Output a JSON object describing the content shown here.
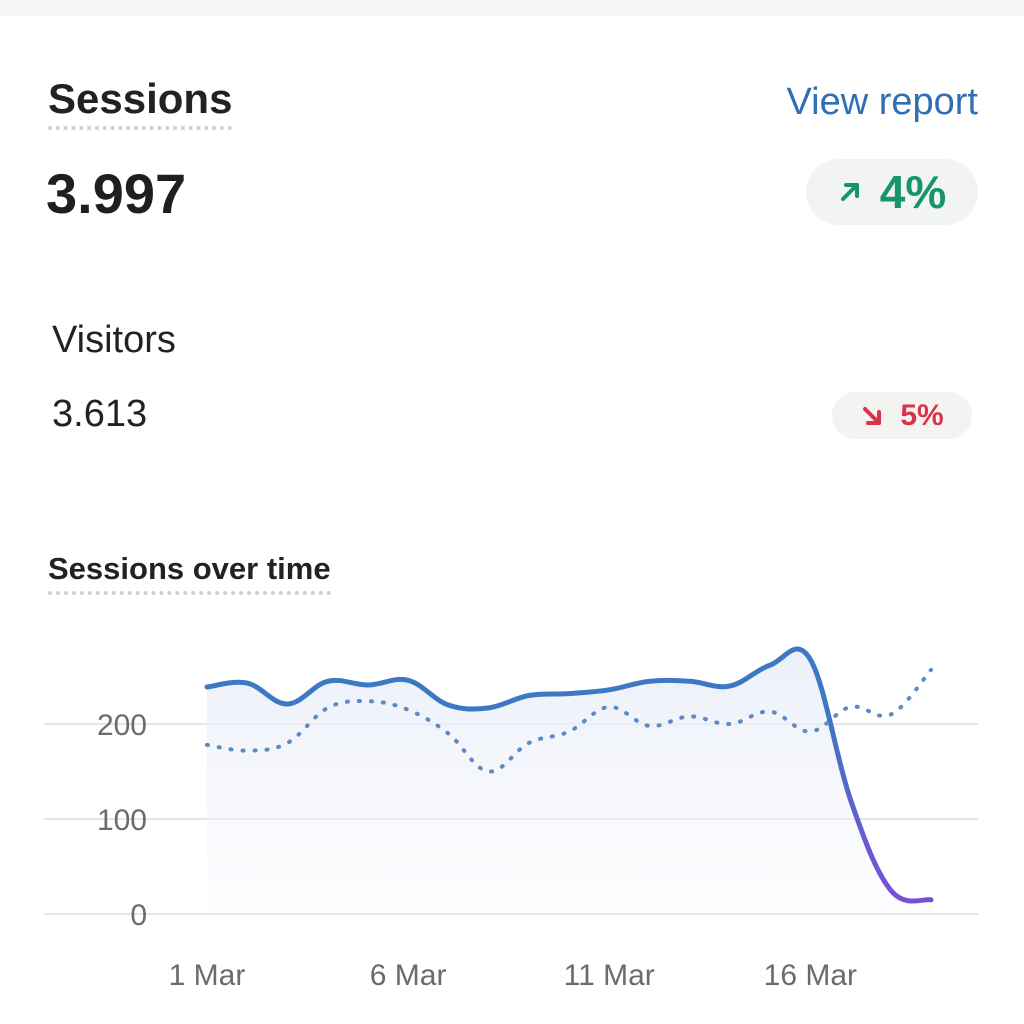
{
  "card": {
    "title": "Sessions",
    "view_report": "View report",
    "value": "3.997",
    "change": "4%",
    "change_direction": "up",
    "up_color": "#14956d",
    "down_color": "#d6344b",
    "accent": "#2f6fb2"
  },
  "secondary": {
    "label": "Visitors",
    "value": "3.613",
    "change": "5%",
    "change_direction": "down"
  },
  "chart_data": {
    "type": "line",
    "title": "Sessions over time",
    "x": [
      "1 Mar",
      "2 Mar",
      "3 Mar",
      "4 Mar",
      "5 Mar",
      "6 Mar",
      "7 Mar",
      "8 Mar",
      "9 Mar",
      "10 Mar",
      "11 Mar",
      "12 Mar",
      "13 Mar",
      "14 Mar",
      "15 Mar",
      "16 Mar",
      "17 Mar",
      "18 Mar",
      "19 Mar"
    ],
    "x_tick_labels": [
      "1 Mar",
      "6 Mar",
      "11 Mar",
      "16 Mar"
    ],
    "y_ticks": [
      0,
      100,
      200
    ],
    "ylim": [
      0,
      275
    ],
    "grid": true,
    "series": [
      {
        "style": "solid",
        "values": [
          239,
          243,
          221,
          245,
          241,
          246,
          220,
          217,
          230,
          232,
          236,
          245,
          245,
          240,
          262,
          268,
          120,
          25,
          15
        ]
      },
      {
        "style": "dotted",
        "values": [
          178,
          172,
          180,
          217,
          224,
          215,
          190,
          150,
          180,
          192,
          218,
          198,
          208,
          200,
          213,
          192,
          218,
          210,
          257
        ]
      }
    ]
  }
}
